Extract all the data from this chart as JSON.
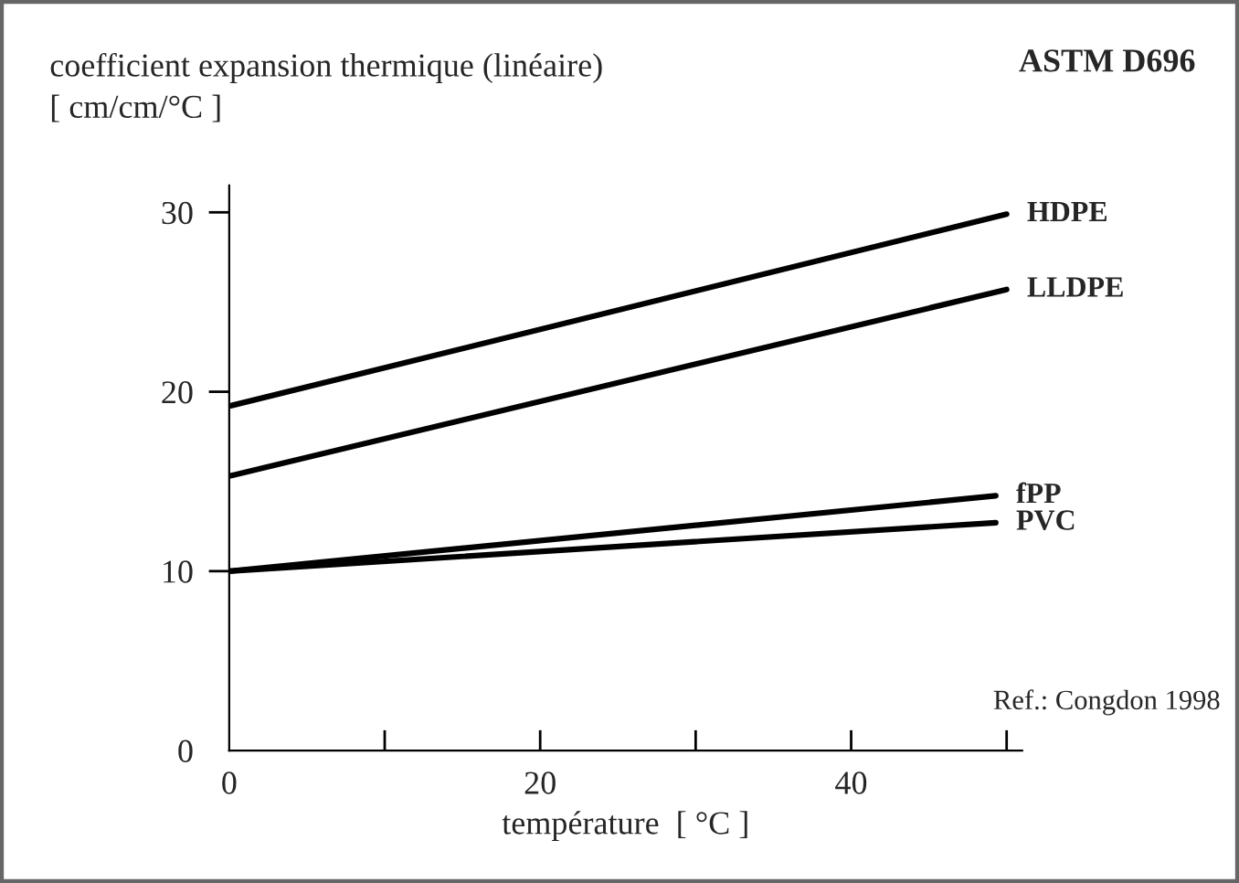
{
  "chart_data": {
    "type": "line",
    "ylabel": "coefficient expansion thermique (linéaire)\n[ cm/cm/°C ]",
    "xlabel": "température  [ °C ]",
    "annotations": [
      "ASTM D696",
      "Ref.: Congdon 1998"
    ],
    "series": [
      {
        "name": "HDPE",
        "color": "#000000",
        "x": [
          0,
          50
        ],
        "values": [
          19.2,
          29.9
        ]
      },
      {
        "name": "LLDPE",
        "color": "#000000",
        "x": [
          0,
          50
        ],
        "values": [
          15.3,
          25.7
        ]
      },
      {
        "name": "fPP",
        "color": "#000000",
        "x": [
          0,
          49.3
        ],
        "values": [
          10,
          14.2
        ]
      },
      {
        "name": "PVC",
        "color": "#000000",
        "x": [
          0,
          49.3
        ],
        "values": [
          10,
          12.7
        ]
      }
    ],
    "xlim": [
      0,
      51
    ],
    "ylim": [
      0,
      31.5
    ],
    "xticks": [
      0,
      {
        "value": 10,
        "label": null
      },
      20,
      {
        "value": 30,
        "label": null
      },
      40,
      {
        "value": 50,
        "label": null
      }
    ],
    "yticks": [
      0,
      10,
      20,
      30
    ],
    "grid": false,
    "legend": false,
    "marker": "none",
    "line_style": "solid"
  }
}
